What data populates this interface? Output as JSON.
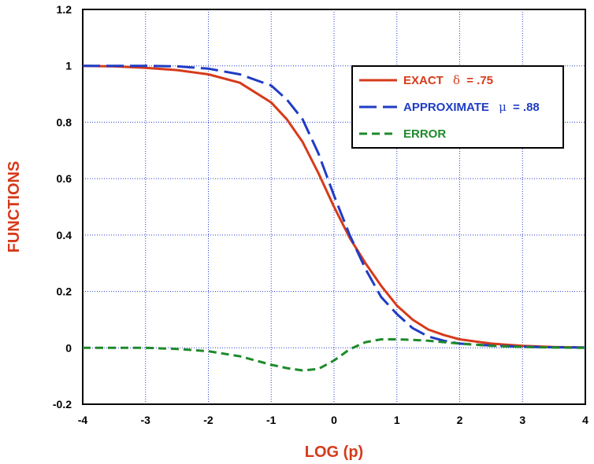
{
  "chart_data": {
    "type": "line",
    "title": "",
    "xlabel": "LOG  (p)",
    "ylabel": "FUNCTIONS",
    "xlim": [
      -4,
      4
    ],
    "ylim": [
      -0.2,
      1.2
    ],
    "x_ticks": [
      "-4",
      "-3",
      "-2",
      "-1",
      "0",
      "1",
      "2",
      "3",
      "4"
    ],
    "y_ticks": [
      "-0.2",
      "0",
      "0.2",
      "0.4",
      "0.6",
      "0.8",
      "1",
      "1.2"
    ],
    "grid": "dotted",
    "legend_position": "top-right",
    "series": [
      {
        "name": "EXACT",
        "legend_symbol": "δ",
        "legend_value": "= .75",
        "color": "#d63a1a",
        "dash": "solid",
        "points": [
          [
            -4,
            1.0
          ],
          [
            -3.5,
            0.998
          ],
          [
            -3,
            0.993
          ],
          [
            -2.5,
            0.985
          ],
          [
            -2,
            0.97
          ],
          [
            -1.5,
            0.94
          ],
          [
            -1,
            0.87
          ],
          [
            -0.75,
            0.81
          ],
          [
            -0.5,
            0.73
          ],
          [
            -0.25,
            0.62
          ],
          [
            0,
            0.5
          ],
          [
            0.25,
            0.39
          ],
          [
            0.5,
            0.3
          ],
          [
            0.75,
            0.22
          ],
          [
            1,
            0.15
          ],
          [
            1.25,
            0.1
          ],
          [
            1.5,
            0.065
          ],
          [
            1.75,
            0.045
          ],
          [
            2,
            0.03
          ],
          [
            2.5,
            0.015
          ],
          [
            3,
            0.007
          ],
          [
            3.5,
            0.003
          ],
          [
            4,
            0.001
          ]
        ]
      },
      {
        "name": "APPROXIMATE",
        "legend_symbol": "μ",
        "legend_value": "= .88",
        "color": "#1f3cc4",
        "dash": "long-dash",
        "points": [
          [
            -4,
            1.0
          ],
          [
            -3.5,
            1.0
          ],
          [
            -3,
            1.0
          ],
          [
            -2.5,
            0.998
          ],
          [
            -2,
            0.99
          ],
          [
            -1.5,
            0.97
          ],
          [
            -1,
            0.93
          ],
          [
            -0.75,
            0.88
          ],
          [
            -0.5,
            0.81
          ],
          [
            -0.25,
            0.69
          ],
          [
            0,
            0.54
          ],
          [
            0.25,
            0.4
          ],
          [
            0.5,
            0.28
          ],
          [
            0.75,
            0.18
          ],
          [
            1,
            0.12
          ],
          [
            1.25,
            0.07
          ],
          [
            1.5,
            0.04
          ],
          [
            1.75,
            0.025
          ],
          [
            2,
            0.015
          ],
          [
            2.5,
            0.008
          ],
          [
            3,
            0.004
          ],
          [
            3.5,
            0.002
          ],
          [
            4,
            0.001
          ]
        ]
      },
      {
        "name": "ERROR",
        "legend_symbol": "",
        "legend_value": "",
        "color": "#1e8a2a",
        "dash": "short-dash",
        "points": [
          [
            -4,
            0.0
          ],
          [
            -3.5,
            0.0
          ],
          [
            -3,
            0.0
          ],
          [
            -2.5,
            -0.004
          ],
          [
            -2,
            -0.012
          ],
          [
            -1.5,
            -0.03
          ],
          [
            -1,
            -0.06
          ],
          [
            -0.75,
            -0.072
          ],
          [
            -0.5,
            -0.08
          ],
          [
            -0.25,
            -0.075
          ],
          [
            0,
            -0.045
          ],
          [
            0.25,
            -0.005
          ],
          [
            0.5,
            0.02
          ],
          [
            0.75,
            0.03
          ],
          [
            1,
            0.03
          ],
          [
            1.25,
            0.028
          ],
          [
            1.5,
            0.025
          ],
          [
            1.75,
            0.02
          ],
          [
            2,
            0.015
          ],
          [
            2.5,
            0.007
          ],
          [
            3,
            0.003
          ],
          [
            3.5,
            0.001
          ],
          [
            4,
            0.0
          ]
        ]
      }
    ]
  }
}
